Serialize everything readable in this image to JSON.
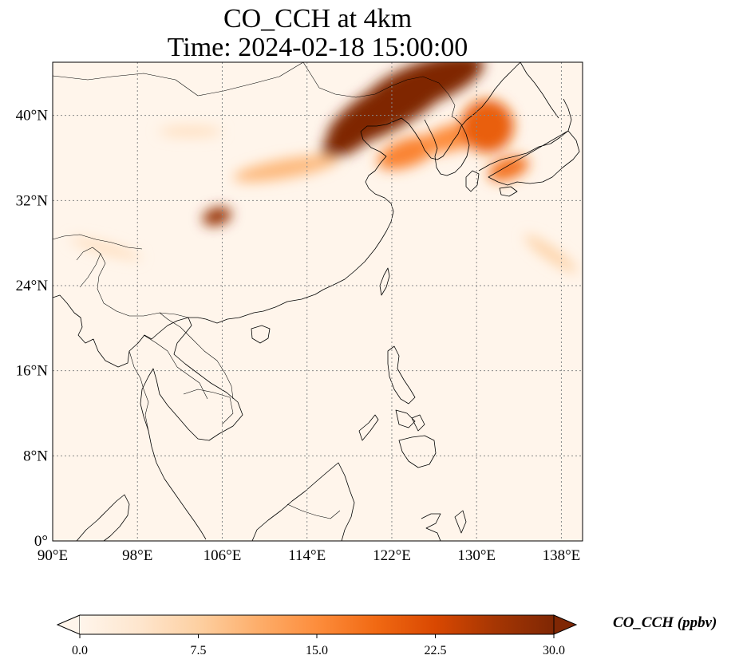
{
  "title": {
    "line1": "CO_CCH at 4km",
    "line2": "Time: 2024-02-18 15:00:00"
  },
  "map": {
    "extent": {
      "lon": [
        90,
        140
      ],
      "lat": [
        0,
        45
      ]
    },
    "lon_ticks": [
      {
        "value": 90,
        "label": "90°E"
      },
      {
        "value": 98,
        "label": "98°E"
      },
      {
        "value": 106,
        "label": "106°E"
      },
      {
        "value": 114,
        "label": "114°E"
      },
      {
        "value": 122,
        "label": "122°E"
      },
      {
        "value": 130,
        "label": "130°E"
      },
      {
        "value": 138,
        "label": "138°E"
      }
    ],
    "lat_ticks": [
      {
        "value": 0,
        "label": "0°"
      },
      {
        "value": 8,
        "label": "8°N"
      },
      {
        "value": 16,
        "label": "16°N"
      },
      {
        "value": 24,
        "label": "24°N"
      },
      {
        "value": 32,
        "label": "32°N"
      },
      {
        "value": 40,
        "label": "40°N"
      }
    ],
    "gridlines": true,
    "background_color": "#fff5eb",
    "plume_features": [
      {
        "name": "north-china-korea-plume",
        "lon": 122,
        "lat": 41,
        "rlon": 7,
        "rlat": 2.2,
        "rot": -30,
        "value": 30
      },
      {
        "name": "plume-core-ne",
        "lon": 125,
        "lat": 43,
        "rlon": 6,
        "rlat": 2,
        "rot": -20,
        "value": 30
      },
      {
        "name": "plume-west-tail",
        "lon": 118,
        "lat": 37.8,
        "rlon": 3,
        "rlat": 1.2,
        "rot": -30,
        "value": 30
      },
      {
        "name": "yellow-sea-plume",
        "lon": 123.5,
        "lat": 36.5,
        "rlon": 3,
        "rlat": 1.3,
        "rot": -20,
        "value": 16
      },
      {
        "name": "korea-plume",
        "lon": 128,
        "lat": 38,
        "rlon": 3.5,
        "rlat": 1.2,
        "rot": -15,
        "value": 15
      },
      {
        "name": "japan-sea-plume",
        "lon": 131,
        "lat": 39,
        "rlon": 2.5,
        "rlat": 2.5,
        "rot": 0,
        "value": 20
      },
      {
        "name": "japan-south-plume",
        "lon": 133,
        "lat": 35,
        "rlon": 2,
        "rlat": 1,
        "rot": -20,
        "value": 18
      },
      {
        "name": "central-china-streak",
        "lon": 112,
        "lat": 35,
        "rlon": 5,
        "rlat": 0.9,
        "rot": -10,
        "value": 10
      },
      {
        "name": "sichuan-hotspot",
        "lon": 105.5,
        "lat": 30.5,
        "rlon": 1.4,
        "rlat": 0.8,
        "rot": -15,
        "value": 28
      },
      {
        "name": "east-pacific-streak",
        "lon": 137,
        "lat": 27,
        "rlon": 3,
        "rlat": 0.6,
        "rot": 35,
        "value": 7
      },
      {
        "name": "western-china-streak",
        "lon": 103,
        "lat": 38.5,
        "rlon": 3,
        "rlat": 0.5,
        "rot": 0,
        "value": 5
      },
      {
        "name": "india-north-streak",
        "lon": 95,
        "lat": 27.5,
        "rlon": 3.5,
        "rlat": 0.5,
        "rot": 15,
        "value": 5
      }
    ]
  },
  "colorbar": {
    "label": "CO_CCH (ppbv)",
    "min": 0.0,
    "max": 30.0,
    "extend": "both",
    "colormap": [
      "#fff5eb",
      "#fee6ce",
      "#fdd0a2",
      "#fdae6b",
      "#fd8d3c",
      "#f16913",
      "#d94801",
      "#a63603",
      "#7f2704"
    ],
    "ticks": [
      {
        "value": 0.0,
        "label": "0.0"
      },
      {
        "value": 7.5,
        "label": "7.5"
      },
      {
        "value": 15.0,
        "label": "15.0"
      },
      {
        "value": 22.5,
        "label": "22.5"
      },
      {
        "value": 30.0,
        "label": "30.0"
      }
    ]
  }
}
